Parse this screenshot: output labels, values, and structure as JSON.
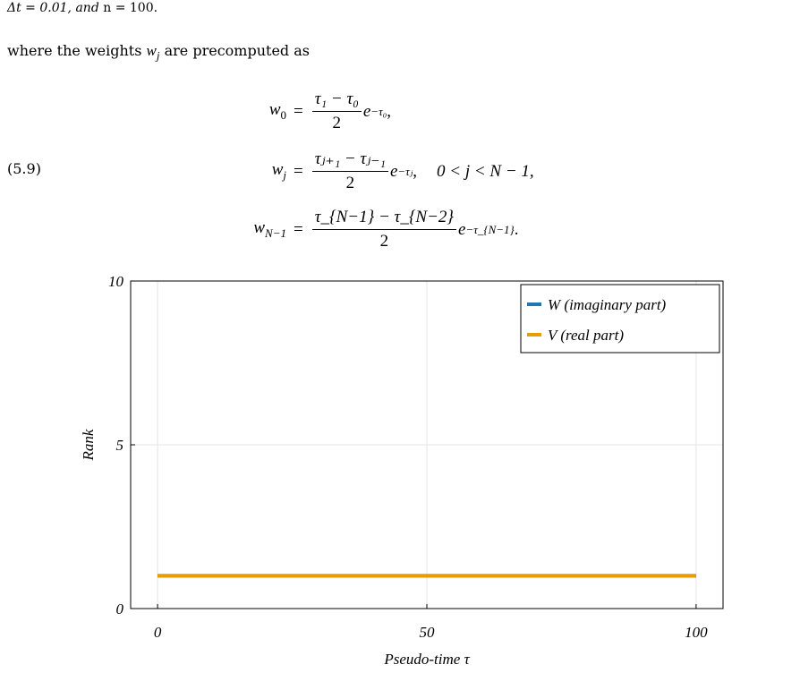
{
  "page": {
    "top_line_math": "Δt = 0.01,",
    "top_line_and": "and",
    "top_line_n": "n = 100.",
    "paragraph_prefix": "where the weights",
    "paragraph_var": "w",
    "paragraph_var_sub": "j",
    "paragraph_suffix": "are precomputed as",
    "equation_number": "(5.9)"
  },
  "equations": {
    "eq0": {
      "lhs_base": "w",
      "lhs_sub": "0",
      "numerator": "τ₁ − τ₀",
      "denominator": "2",
      "factor": "e",
      "exponent": "−τ₀",
      "tail": ","
    },
    "eq1": {
      "lhs_base": "w",
      "lhs_sub": "j",
      "numerator": "τⱼ₊₁ − τⱼ₋₁",
      "denominator": "2",
      "factor": "e",
      "exponent": "−τⱼ",
      "tail": ",",
      "condition": "0 < j < N − 1,"
    },
    "eq2": {
      "lhs_base": "w",
      "lhs_sub": "N−1",
      "numerator": "τ_{N−1} − τ_{N−2}",
      "denominator": "2",
      "factor": "e",
      "exponent": "−τ_{N−1}",
      "tail": "."
    }
  },
  "chart_data": {
    "type": "line",
    "xlabel": "Pseudo-time τ",
    "ylabel": "Rank",
    "xlim": [
      -5,
      105
    ],
    "ylim": [
      0,
      10
    ],
    "xticks": [
      0,
      50,
      100
    ],
    "yticks": [
      0,
      5,
      10
    ],
    "xtick_labels": [
      "0",
      "50",
      "100"
    ],
    "ytick_labels": [
      "0",
      "5",
      "10"
    ],
    "grid": true,
    "legend_position": "top-right",
    "series": [
      {
        "name": "W (imaginary part)",
        "color": "#1f77b4",
        "x": [
          0,
          100
        ],
        "y": [
          1,
          1
        ]
      },
      {
        "name": "V (real part)",
        "color": "#e69f00",
        "x": [
          0,
          100
        ],
        "y": [
          1,
          1
        ]
      }
    ]
  }
}
